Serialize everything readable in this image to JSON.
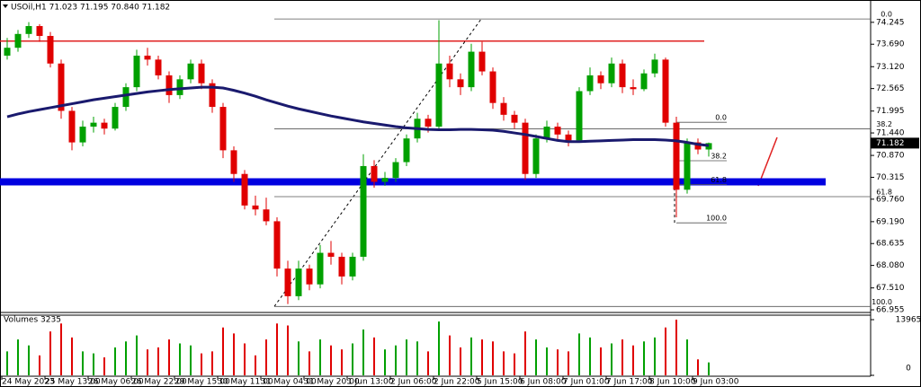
{
  "chart_data": {
    "type": "candlestick",
    "title": "USOil,H1  71.023 71.195 70.840 71.182",
    "categories": [
      "24 May 2023",
      null,
      null,
      null,
      "25 May 13:00",
      null,
      null,
      null,
      "26 May 06:00",
      null,
      null,
      null,
      "26 May 22:00",
      null,
      null,
      null,
      "29 May 15:00",
      null,
      null,
      null,
      "30 May 11:00",
      null,
      null,
      null,
      "31 May 04:00",
      null,
      null,
      null,
      "31 May 20:00",
      null,
      null,
      null,
      "1 Jun 13:00",
      null,
      null,
      null,
      "2 Jun 06:00",
      null,
      null,
      null,
      "2 Jun 22:00",
      null,
      null,
      null,
      "5 Jun 15:00",
      null,
      null,
      null,
      "6 Jun 08:00",
      null,
      null,
      null,
      "7 Jun 01:00",
      null,
      null,
      null,
      "7 Jun 17:00",
      null,
      null,
      null,
      "8 Jun 10:00",
      null,
      null,
      null,
      "9 Jun 03:00",
      null
    ],
    "open": [
      73.4,
      73.6,
      73.95,
      74.15,
      73.9,
      73.2,
      72.0,
      71.2,
      71.6,
      71.7,
      71.55,
      72.1,
      72.6,
      73.4,
      73.3,
      72.9,
      72.4,
      72.8,
      73.2,
      72.7,
      72.1,
      71.0,
      70.4,
      69.6,
      69.5,
      69.2,
      68.0,
      67.3,
      68.0,
      67.6,
      68.4,
      68.3,
      67.8,
      68.3,
      70.6,
      70.2,
      70.3,
      70.7,
      71.3,
      71.8,
      71.6,
      73.2,
      72.8,
      72.6,
      73.5,
      73.0,
      72.2,
      71.9,
      71.7,
      70.4,
      71.3,
      71.6,
      71.4,
      71.25,
      72.5,
      72.9,
      72.7,
      73.2,
      72.6,
      72.55,
      72.95,
      73.3,
      71.7,
      70.0,
      71.2,
      71.02
    ],
    "high": [
      73.85,
      74.05,
      74.25,
      74.2,
      74.0,
      73.3,
      72.1,
      71.75,
      71.85,
      71.8,
      72.2,
      72.7,
      73.55,
      73.6,
      73.4,
      73.0,
      72.9,
      73.3,
      73.3,
      72.8,
      72.2,
      71.1,
      70.5,
      69.85,
      69.8,
      69.3,
      68.2,
      68.2,
      68.1,
      68.6,
      68.7,
      68.4,
      68.4,
      70.9,
      70.75,
      70.45,
      70.8,
      71.4,
      71.95,
      71.9,
      74.3,
      73.4,
      72.95,
      73.7,
      73.75,
      73.1,
      72.35,
      72.0,
      71.8,
      71.4,
      71.75,
      71.7,
      71.5,
      72.6,
      73.1,
      73.0,
      73.35,
      73.3,
      72.8,
      73.05,
      73.45,
      73.35,
      71.85,
      71.3,
      71.3,
      71.195
    ],
    "low": [
      73.3,
      73.5,
      73.85,
      73.75,
      73.1,
      71.8,
      71.0,
      71.1,
      71.45,
      71.4,
      71.5,
      72.0,
      72.5,
      73.15,
      72.8,
      72.2,
      72.3,
      72.7,
      72.55,
      71.95,
      70.8,
      70.2,
      69.5,
      69.35,
      69.1,
      67.8,
      67.1,
      67.2,
      67.45,
      67.5,
      68.1,
      67.6,
      67.7,
      68.2,
      70.05,
      70.1,
      70.2,
      70.6,
      71.2,
      71.45,
      71.55,
      72.6,
      72.4,
      72.5,
      72.9,
      72.05,
      71.75,
      71.55,
      70.25,
      70.3,
      71.2,
      71.25,
      71.1,
      71.2,
      72.4,
      72.55,
      72.6,
      72.45,
      72.4,
      72.5,
      72.85,
      71.6,
      69.3,
      69.9,
      70.9,
      70.84
    ],
    "close": [
      73.6,
      73.95,
      74.15,
      73.9,
      73.2,
      72.0,
      71.2,
      71.6,
      71.7,
      71.55,
      72.1,
      72.6,
      73.4,
      73.3,
      72.9,
      72.4,
      72.8,
      73.2,
      72.7,
      72.1,
      71.0,
      70.4,
      69.6,
      69.5,
      69.2,
      68.0,
      67.3,
      68.0,
      67.6,
      68.4,
      68.3,
      67.8,
      68.3,
      70.6,
      70.2,
      70.3,
      70.7,
      71.3,
      71.8,
      71.6,
      73.2,
      72.8,
      72.6,
      73.5,
      73.0,
      72.2,
      71.9,
      71.7,
      70.4,
      71.3,
      71.6,
      71.4,
      71.25,
      72.5,
      72.9,
      72.7,
      73.2,
      72.6,
      72.55,
      72.95,
      73.3,
      71.7,
      70.0,
      71.2,
      71.02,
      71.182
    ],
    "up_color": "#00a000",
    "down_color": "#e00000",
    "ylim": [
      66.91,
      74.72
    ],
    "yticks": [
      74.245,
      {
        "value": 73.69,
        "label": "73.690"
      },
      {
        "value": 73.12,
        "label": "73.120"
      },
      72.565,
      71.995,
      {
        "value": 71.44,
        "label": "71.440"
      },
      {
        "value": 70.87,
        "label": "70.870"
      },
      70.315,
      {
        "value": 69.76,
        "label": "69.760"
      },
      {
        "value": 69.19,
        "label": "69.190"
      },
      68.635,
      {
        "value": 68.08,
        "label": "68.080"
      },
      {
        "value": 67.51,
        "label": "67.510"
      },
      66.955
    ],
    "last_price": 71.182,
    "moving_average": {
      "color": "#1a1a6e",
      "values": [
        71.85,
        71.92,
        71.98,
        72.03,
        72.08,
        72.13,
        72.18,
        72.23,
        72.28,
        72.32,
        72.36,
        72.4,
        72.44,
        72.48,
        72.51,
        72.54,
        72.56,
        72.58,
        72.6,
        72.6,
        72.58,
        72.52,
        72.45,
        72.37,
        72.28,
        72.2,
        72.12,
        72.05,
        71.99,
        71.93,
        71.87,
        71.82,
        71.77,
        71.72,
        71.68,
        71.64,
        71.6,
        71.57,
        71.55,
        71.53,
        71.52,
        71.52,
        71.53,
        71.53,
        71.52,
        71.51,
        71.48,
        71.44,
        71.4,
        71.35,
        71.3,
        71.25,
        71.22,
        71.22,
        71.23,
        71.24,
        71.25,
        71.26,
        71.27,
        71.27,
        71.27,
        71.26,
        71.24,
        71.2,
        71.15,
        71.12
      ]
    },
    "resistance": {
      "value": 73.77,
      "color": "#e02020"
    },
    "support": {
      "value": 70.2,
      "color": "#0000e0"
    },
    "fibonacci": [
      {
        "high": 74.33,
        "low": 67.04,
        "levels": [
          {
            "value": 0,
            "label": "0.0"
          },
          38.2,
          61.8,
          {
            "value": 100,
            "label": "100.0"
          }
        ]
      },
      {
        "high": 71.71,
        "low": 69.16,
        "levels": [
          {
            "value": 0,
            "label": "0.0"
          },
          38.2,
          61.8,
          {
            "value": 100,
            "label": "100.0"
          }
        ]
      }
    ],
    "volume": {
      "title": "Volumes 3235",
      "values": [
        6000,
        9000,
        7500,
        5000,
        11000,
        13000,
        9500,
        6000,
        5500,
        4500,
        7000,
        8500,
        10000,
        6500,
        7000,
        9000,
        8000,
        7500,
        5500,
        6000,
        12000,
        10500,
        8000,
        5000,
        9000,
        13000,
        12500,
        8500,
        6000,
        9000,
        7500,
        6500,
        8000,
        11500,
        9500,
        6500,
        7500,
        9000,
        8500,
        6000,
        13500,
        10000,
        7000,
        9500,
        9000,
        8500,
        6000,
        5500,
        11000,
        9000,
        7000,
        6500,
        6000,
        10500,
        9500,
        7000,
        8000,
        9000,
        7500,
        8500,
        9500,
        12000,
        13965,
        9000,
        4000,
        3235
      ],
      "ylim": [
        0,
        15090
      ],
      "yticks": [
        13965,
        0
      ]
    }
  }
}
